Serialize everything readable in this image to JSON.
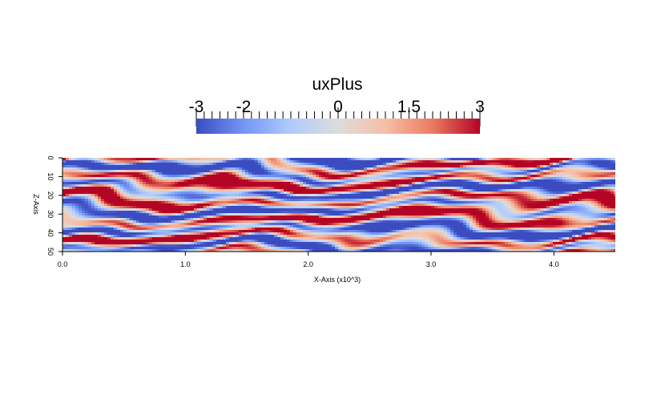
{
  "chart_data": {
    "type": "heatmap",
    "colorbar": {
      "title": "uxPlus",
      "min": -3,
      "max": 3,
      "tick_labels": [
        {
          "label": "-3",
          "value": -3
        },
        {
          "label": "-2",
          "value": -2
        },
        {
          "label": "0",
          "value": 0
        },
        {
          "label": "1.5",
          "value": 1.5
        },
        {
          "label": "3",
          "value": 3
        }
      ],
      "colormap": [
        "#3b4cc0",
        "#7396f5",
        "#b0cbfc",
        "#dddcdc",
        "#f6bfa6",
        "#ea7b60",
        "#b40426"
      ]
    },
    "xlabel": "X-Axis (x10^3)",
    "ylabel": "Z-Axis",
    "xlim": [
      0,
      4.5
    ],
    "ylim": [
      0,
      50
    ],
    "y_inverted": true,
    "x_ticks": [
      {
        "label": "0.0",
        "value": 0
      },
      {
        "label": "1.0",
        "value": 1
      },
      {
        "label": "2.0",
        "value": 2
      },
      {
        "label": "3.0",
        "value": 3
      },
      {
        "label": "4.0",
        "value": 4
      }
    ],
    "y_ticks": [
      {
        "label": "0",
        "value": 0
      },
      {
        "label": "10",
        "value": 10
      },
      {
        "label": "20",
        "value": 20
      },
      {
        "label": "30",
        "value": 30
      },
      {
        "label": "40",
        "value": 40
      },
      {
        "label": "50",
        "value": 50
      }
    ],
    "grid": false
  }
}
